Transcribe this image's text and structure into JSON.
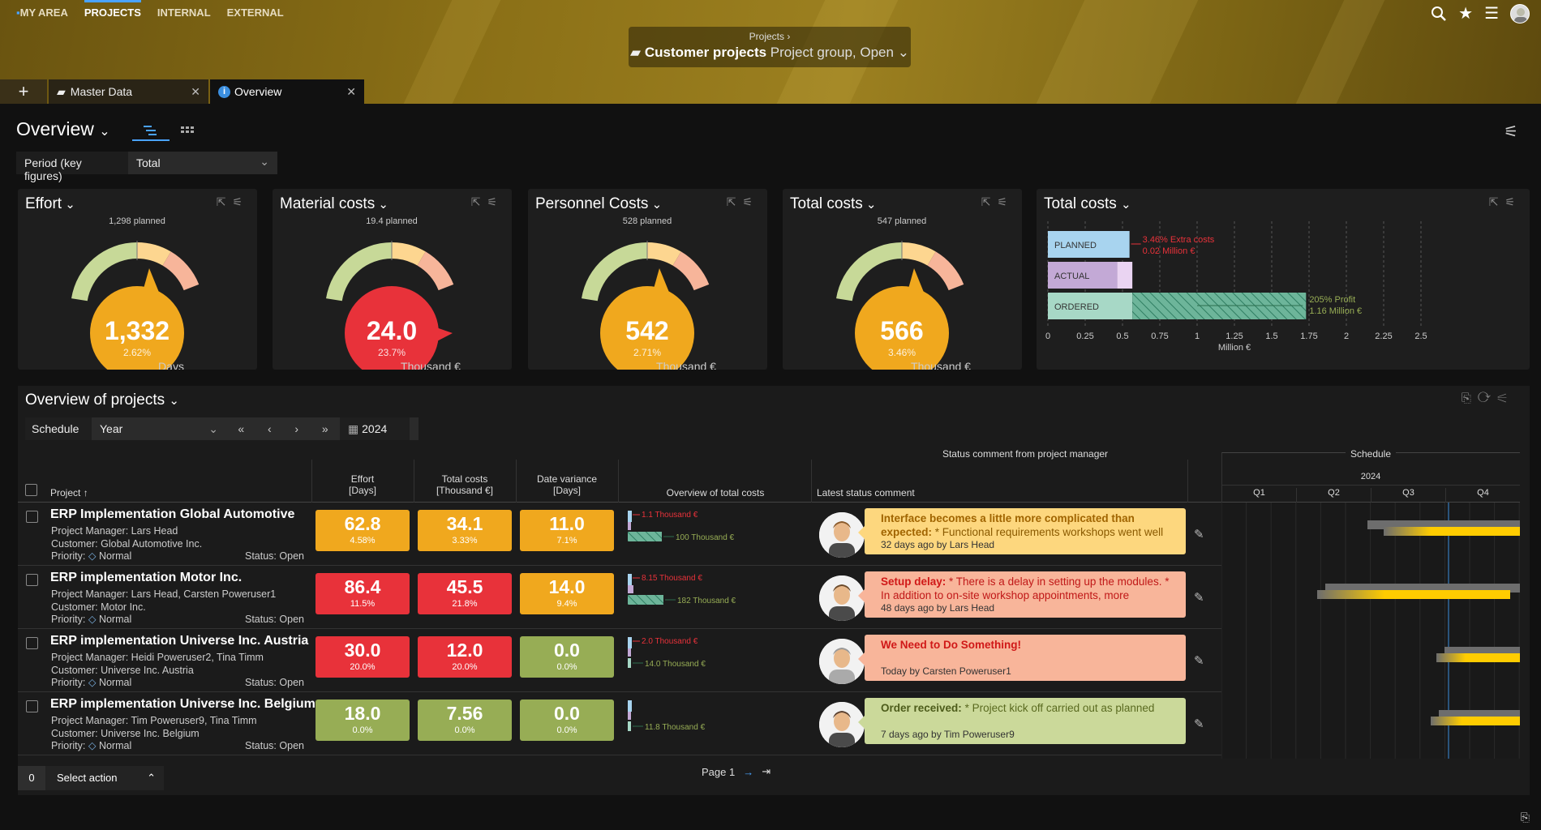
{
  "nav": {
    "logo": "MY AREA",
    "items": [
      "PROJECTS",
      "INTERNAL",
      "EXTERNAL"
    ]
  },
  "breadcrumb": {
    "parent": "Projects",
    "title": "Customer projects",
    "subtitle": "Project group, Open"
  },
  "tabs": [
    {
      "label": "Master Data"
    },
    {
      "label": "Overview"
    }
  ],
  "page": {
    "title": "Overview",
    "period_label": "Period (key figures)",
    "period_value": "Total"
  },
  "cards": [
    {
      "title": "Effort",
      "planned": "1,298 planned",
      "value": "1,332",
      "pct": "2.62%",
      "unit": "Days",
      "color": "#f0a81e"
    },
    {
      "title": "Material costs",
      "planned": "19.4 planned",
      "value": "24.0",
      "pct": "23.7%",
      "unit": "Thousand €",
      "color": "#e8323a"
    },
    {
      "title": "Personnel Costs",
      "planned": "528 planned",
      "value": "542",
      "pct": "2.71%",
      "unit": "Thousand €",
      "color": "#f0a81e"
    },
    {
      "title": "Total costs",
      "planned": "547 planned",
      "value": "566",
      "pct": "3.46%",
      "unit": "Thousand €",
      "color": "#f0a81e"
    }
  ],
  "total_costs_chart": {
    "title": "Total costs",
    "labels": [
      "PLANNED",
      "ACTUAL",
      "ORDERED"
    ],
    "extra_costs": "3.46% Extra costs",
    "extra_amount": "0.02 Million €",
    "profit": "205% Profit",
    "profit_amount": "1.16 Million €",
    "axis_label": "Million €"
  },
  "chart_data": {
    "type": "bar",
    "orientation": "horizontal",
    "categories": [
      "PLANNED",
      "ACTUAL",
      "ORDERED"
    ],
    "values": [
      0.547,
      0.566,
      1.73
    ],
    "xlabel": "Million €",
    "xlim": [
      0,
      2.5
    ],
    "xticks": [
      "0",
      "0.25",
      "0.5",
      "0.75",
      "1",
      "1.25",
      "1.5",
      "1.75",
      "2",
      "2.25",
      "2.5"
    ]
  },
  "projects_panel": {
    "title": "Overview of projects",
    "schedule_label": "Schedule",
    "schedule_value": "Year",
    "year": "2024"
  },
  "columns": {
    "project": "Project",
    "effort": "Effort",
    "effort_unit": "[Days]",
    "total_costs": "Total costs",
    "total_costs_unit": "[Thousand €]",
    "date_variance": "Date variance",
    "date_variance_unit": "[Days]",
    "overview": "Overview of total costs",
    "status_group": "Status comment from project manager",
    "latest": "Latest status comment",
    "schedule_group": "Schedule",
    "sched_year": "2024",
    "quarters": [
      "Q1",
      "Q2",
      "Q3",
      "Q4"
    ]
  },
  "meta_labels": {
    "pm": "Project Manager:",
    "customer": "Customer:",
    "priority": "Priority:",
    "status": "Status:"
  },
  "projects": [
    {
      "name": "ERP Implementation Global Automotive",
      "pm": "Lars Head",
      "customer": "Global Automotive Inc.",
      "priority": "Normal",
      "status": "Open",
      "effort": "62.8",
      "effort_pct": "4.58%",
      "effort_color": "yel",
      "costs": "34.1",
      "costs_pct": "3.33%",
      "costs_color": "yel",
      "date": "11.0",
      "date_pct": "7.1%",
      "date_color": "yel",
      "ov_top": "1.1 Thousand €",
      "ov_bot": "100 Thousand €",
      "comment_lead": "Interface becomes a little more complicated than expected:",
      "comment_text": " * Functional requirements workshops went well",
      "comment_by": "32 days ago by Lars Head",
      "comment_style": "y"
    },
    {
      "name": "ERP implementation Motor Inc.",
      "pm": "Lars Head, Carsten Poweruser1",
      "customer": "Motor Inc.",
      "priority": "Normal",
      "status": "Open",
      "effort": "86.4",
      "effort_pct": "11.5%",
      "effort_color": "red",
      "costs": "45.5",
      "costs_pct": "21.8%",
      "costs_color": "red",
      "date": "14.0",
      "date_pct": "9.4%",
      "date_color": "yel",
      "ov_top": "8.15 Thousand €",
      "ov_bot": "182 Thousand €",
      "comment_lead": "Setup delay:",
      "comment_text": " * There is a delay in setting up the modules. * In addition to on-site workshop appointments, more",
      "comment_by": "48 days ago by Lars Head",
      "comment_style": "o"
    },
    {
      "name": "ERP implementation Universe Inc. Austria",
      "pm": "Heidi Poweruser2, Tina Timm",
      "customer": "Universe Inc. Austria",
      "priority": "Normal",
      "status": "Open",
      "effort": "30.0",
      "effort_pct": "20.0%",
      "effort_color": "red",
      "costs": "12.0",
      "costs_pct": "20.0%",
      "costs_color": "red",
      "date": "0.0",
      "date_pct": "0.0%",
      "date_color": "grn",
      "ov_top": "2.0 Thousand €",
      "ov_bot": "14.0 Thousand €",
      "comment_lead": "We Need to Do Something!",
      "comment_text": "",
      "comment_by": "Today by Carsten Poweruser1",
      "comment_style": "o"
    },
    {
      "name": "ERP implementation Universe Inc. Belgium",
      "pm": "Tim Poweruser9, Tina Timm",
      "customer": "Universe Inc. Belgium",
      "priority": "Normal",
      "status": "Open",
      "effort": "18.0",
      "effort_pct": "0.0%",
      "effort_color": "grn",
      "costs": "7.56",
      "costs_pct": "0.0%",
      "costs_color": "grn",
      "date": "0.0",
      "date_pct": "0.0%",
      "date_color": "grn",
      "ov_top": "",
      "ov_bot": "11.8 Thousand €",
      "comment_lead": "Order received:",
      "comment_text": " * Project kick off carried out as planned",
      "comment_by": "7 days ago by Tim Poweruser9",
      "comment_style": "g"
    }
  ],
  "footer": {
    "count": "0",
    "action": "Select action",
    "page": "Page 1"
  }
}
